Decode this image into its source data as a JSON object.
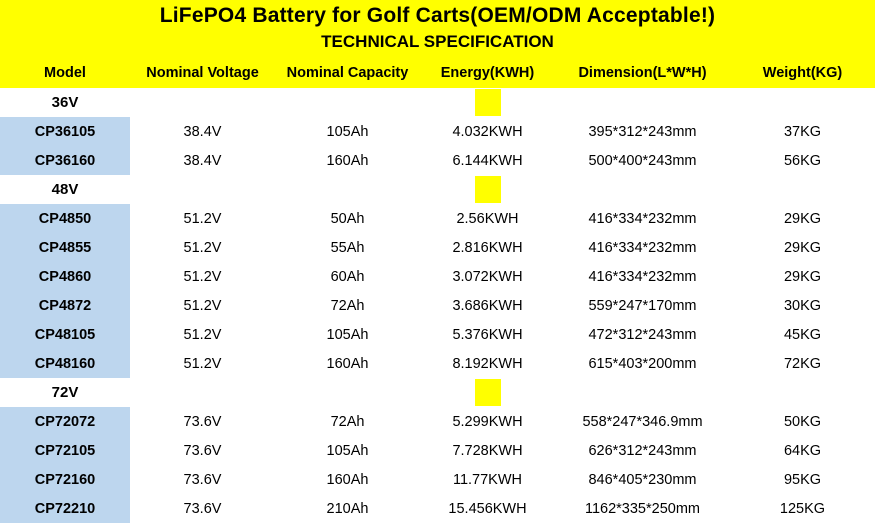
{
  "title": "LiFePO4 Battery for Golf Carts(OEM/ODM Acceptable!)",
  "subtitle": "TECHNICAL SPECIFICATION",
  "colors": {
    "header_bg": "#FFFF00",
    "model_column_bg": "#BDD6EE",
    "text": "#000000"
  },
  "table": {
    "columns": [
      "Model",
      "Nominal Voltage",
      "Nominal Capacity",
      "Energy(KWH)",
      "Dimension(L*W*H)",
      "Weight(KG)"
    ],
    "rows": [
      {
        "section": true,
        "cells": [
          "36V",
          "",
          "",
          "",
          "",
          ""
        ]
      },
      {
        "section": false,
        "cells": [
          "CP36105",
          "38.4V",
          "105Ah",
          "4.032KWH",
          "395*312*243mm",
          "37KG"
        ]
      },
      {
        "section": false,
        "cells": [
          "CP36160",
          "38.4V",
          "160Ah",
          "6.144KWH",
          "500*400*243mm",
          "56KG"
        ]
      },
      {
        "section": true,
        "cells": [
          "48V",
          "",
          "",
          "",
          "",
          ""
        ]
      },
      {
        "section": false,
        "cells": [
          "CP4850",
          "51.2V",
          "50Ah",
          "2.56KWH",
          "416*334*232mm",
          "29KG"
        ]
      },
      {
        "section": false,
        "cells": [
          "CP4855",
          "51.2V",
          "55Ah",
          "2.816KWH",
          "416*334*232mm",
          "29KG"
        ]
      },
      {
        "section": false,
        "cells": [
          "CP4860",
          "51.2V",
          "60Ah",
          "3.072KWH",
          "416*334*232mm",
          "29KG"
        ]
      },
      {
        "section": false,
        "cells": [
          "CP4872",
          "51.2V",
          "72Ah",
          "3.686KWH",
          "559*247*170mm",
          "30KG"
        ]
      },
      {
        "section": false,
        "cells": [
          "CP48105",
          "51.2V",
          "105Ah",
          "5.376KWH",
          "472*312*243mm",
          "45KG"
        ]
      },
      {
        "section": false,
        "cells": [
          "CP48160",
          "51.2V",
          "160Ah",
          "8.192KWH",
          "615*403*200mm",
          "72KG"
        ]
      },
      {
        "section": true,
        "cells": [
          "72V",
          "",
          "",
          "",
          "",
          ""
        ]
      },
      {
        "section": false,
        "cells": [
          "CP72072",
          "73.6V",
          "72Ah",
          "5.299KWH",
          "558*247*346.9mm",
          "50KG"
        ]
      },
      {
        "section": false,
        "cells": [
          "CP72105",
          "73.6V",
          "105Ah",
          "7.728KWH",
          "626*312*243mm",
          "64KG"
        ]
      },
      {
        "section": false,
        "cells": [
          "CP72160",
          "73.6V",
          "160Ah",
          "11.77KWH",
          "846*405*230mm",
          "95KG"
        ]
      },
      {
        "section": false,
        "cells": [
          "CP72210",
          "73.6V",
          "210Ah",
          "15.456KWH",
          "1162*335*250mm",
          "125KG"
        ]
      }
    ]
  }
}
